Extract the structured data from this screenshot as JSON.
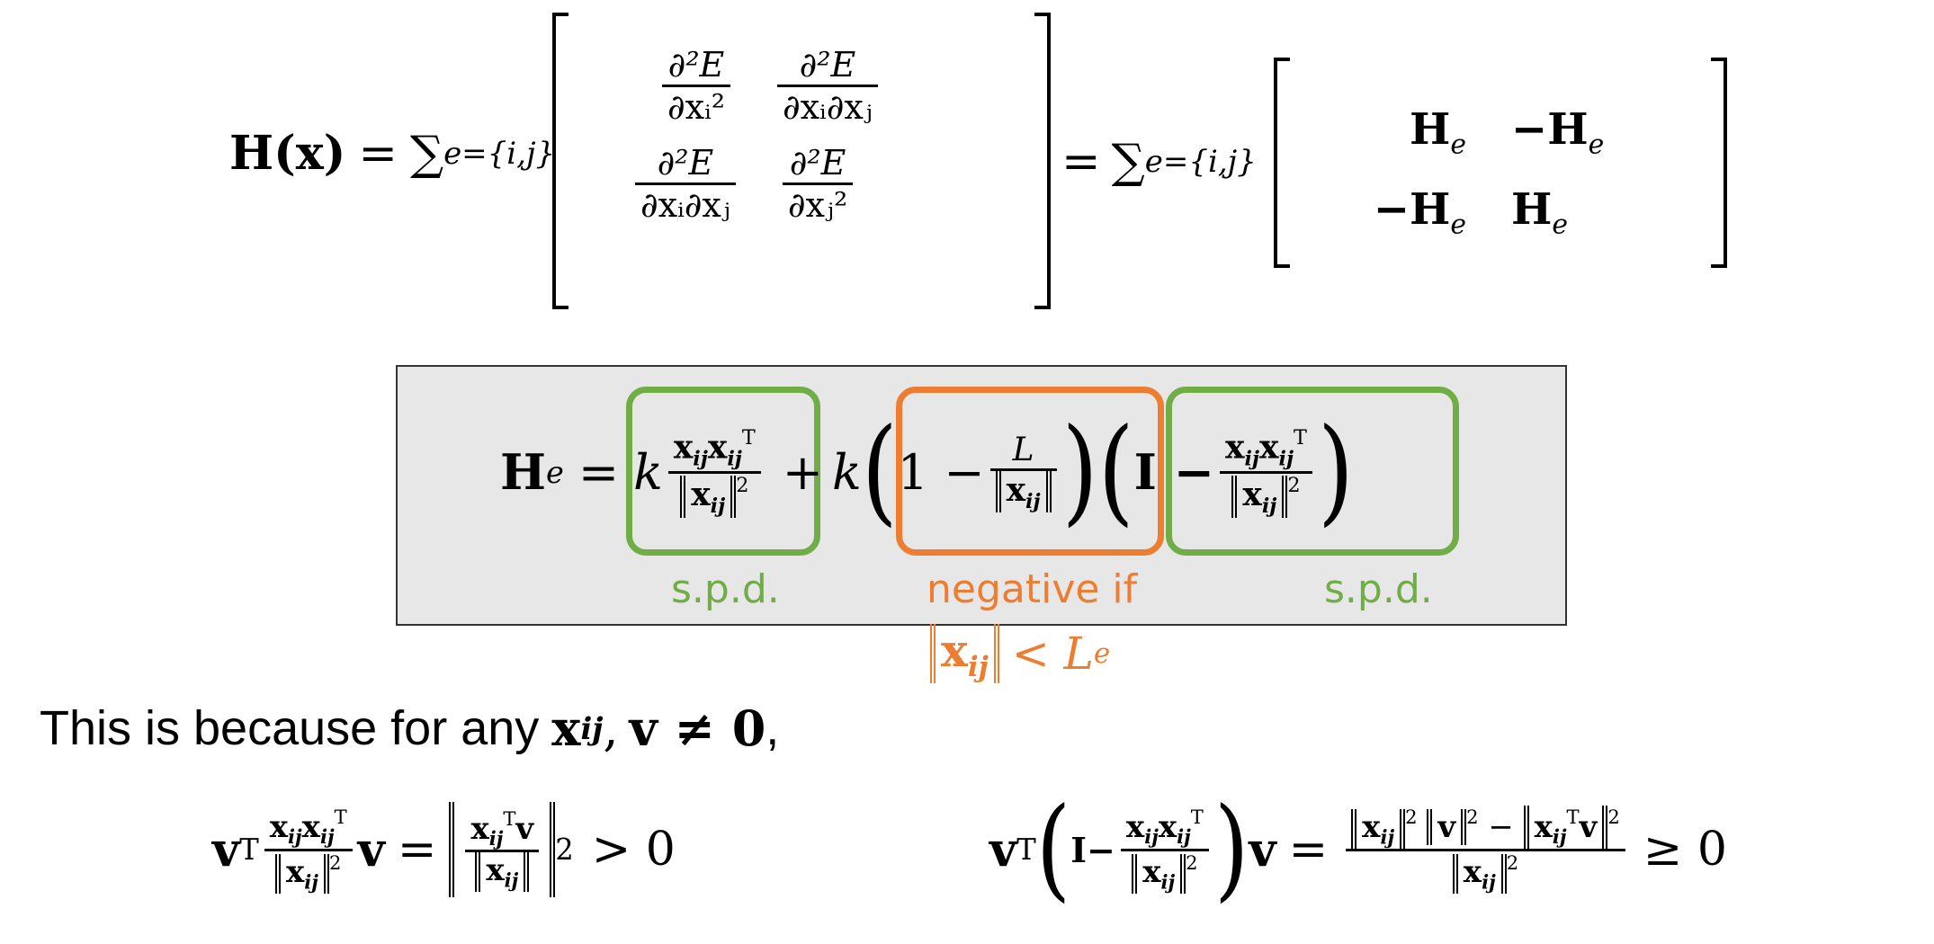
{
  "colors": {
    "green": "#70ad47",
    "orange": "#ed7d31",
    "box_bg": "#e7e7e7"
  },
  "eq1": {
    "lhs_H": "H",
    "lhs_x": "(x)",
    "eq": "=",
    "sum": "∑",
    "sum_sub": "e={i,j}",
    "d2E": "∂²E",
    "d_xi2": "∂xᵢ²",
    "d_xixj": "∂xᵢ∂xⱼ",
    "d_xj2": "∂xⱼ²",
    "He": "H",
    "He_sub": "e",
    "neg_He": "−H"
  },
  "eq2": {
    "H": "H",
    "H_sub": "e",
    "eq": "=",
    "k": "k",
    "plus": "+",
    "one_minus": "1 −",
    "L": "L",
    "I_minus": "I −",
    "x": "x",
    "ij": "ij",
    "T": "T",
    "sq": "2"
  },
  "labels": {
    "spd_left": "s.p.d.",
    "negative_if": "negative if",
    "condition_lhs": "x",
    "condition_sub": "ij",
    "condition_lt": "< L",
    "condition_L_sub": "e",
    "spd_right": "s.p.d."
  },
  "because": {
    "text": "This is because for any",
    "x": "x",
    "x_sub": "ij",
    "comma": ",",
    "v_neq": "v ≠ 0",
    "end": ","
  },
  "eq3": {
    "v": "v",
    "T": "T",
    "gt0": "> 0",
    "sq": "2"
  },
  "eq4": {
    "v": "v",
    "T": "T",
    "I_minus": "I−",
    "minus": "−",
    "ge0": "≥ 0",
    "sq": "2"
  }
}
